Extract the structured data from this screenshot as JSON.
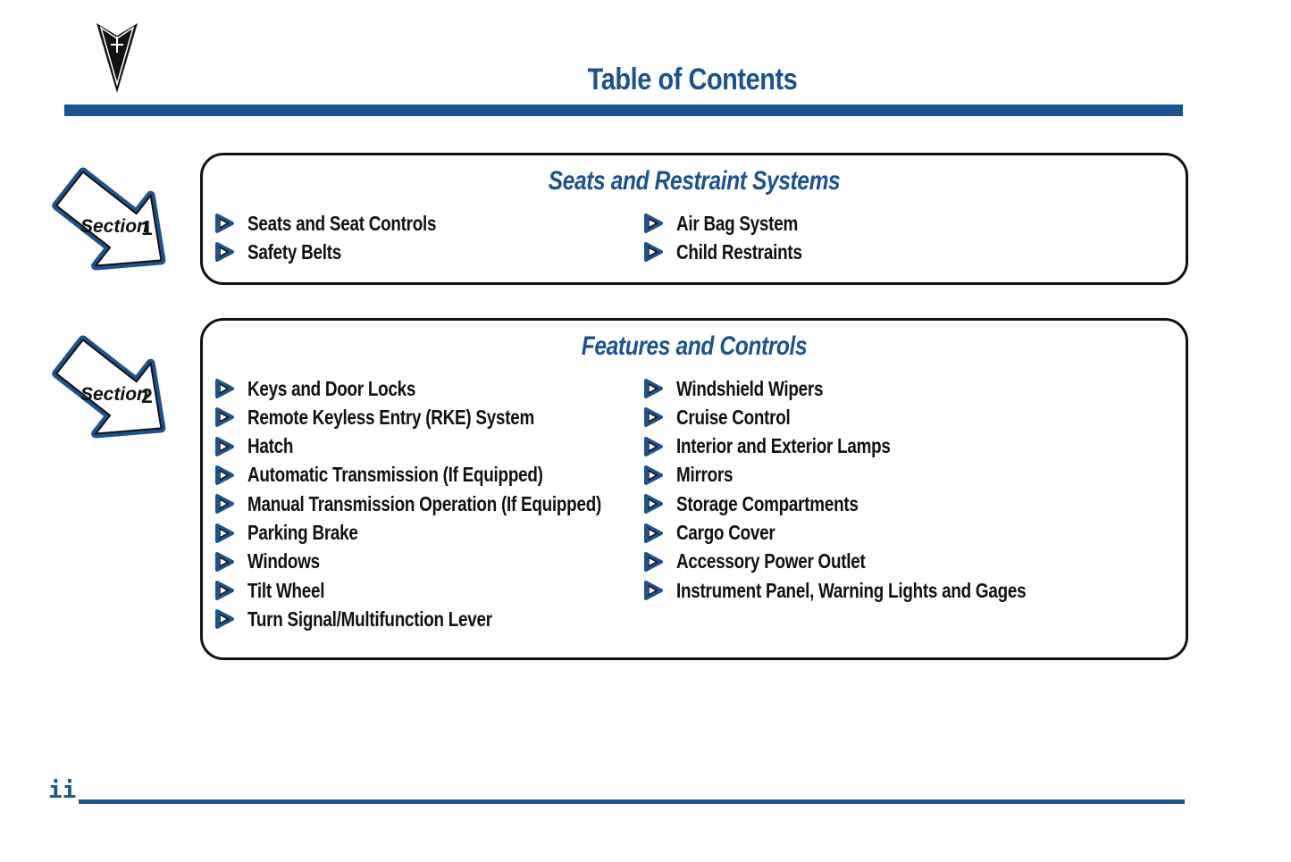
{
  "header": {
    "title": "Table of Contents",
    "logo_icon": "pontiac-arrowhead-logo"
  },
  "accent_color": "#1a5390",
  "sections": [
    {
      "badge_label": "Section",
      "badge_number": "1",
      "title": "Seats and Restraint Systems",
      "left": [
        "Seats and Seat Controls",
        "Safety Belts"
      ],
      "right": [
        "Air Bag System",
        "Child Restraints"
      ]
    },
    {
      "badge_label": "Section",
      "badge_number": "2",
      "title": "Features and Controls",
      "left": [
        "Keys and Door Locks",
        "Remote Keyless Entry (RKE) System",
        "Hatch",
        "Automatic Transmission (If Equipped)",
        "Manual Transmission Operation (If Equipped)",
        "Parking Brake",
        "Windows",
        "Tilt Wheel",
        "Turn Signal/Multifunction Lever"
      ],
      "right": [
        "Windshield Wipers",
        "Cruise Control",
        "Interior and Exterior Lamps",
        "Mirrors",
        "Storage Compartments",
        "Cargo Cover",
        "Accessory Power Outlet",
        "Instrument Panel, Warning Lights and Gages"
      ]
    }
  ],
  "footer": {
    "page_number": "ii"
  }
}
